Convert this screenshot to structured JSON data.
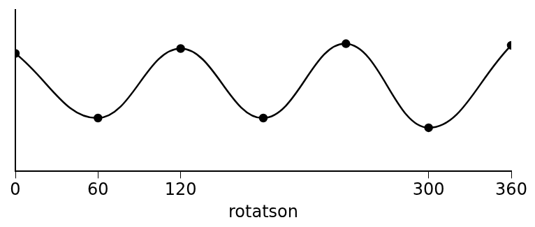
{
  "chart_data": {
    "type": "line",
    "x_label": "rotatson",
    "x": [
      0,
      60,
      120,
      180,
      240,
      300,
      360
    ],
    "values": [
      7.3,
      3.3,
      7.6,
      3.3,
      7.9,
      2.7,
      7.8
    ],
    "color": "#000000",
    "marker": "circle",
    "xlim": [
      0,
      360
    ],
    "xticks": [
      0,
      60,
      120,
      300,
      360
    ],
    "ylim": [
      0,
      10
    ],
    "tick_labels": "x",
    "grid": false
  }
}
